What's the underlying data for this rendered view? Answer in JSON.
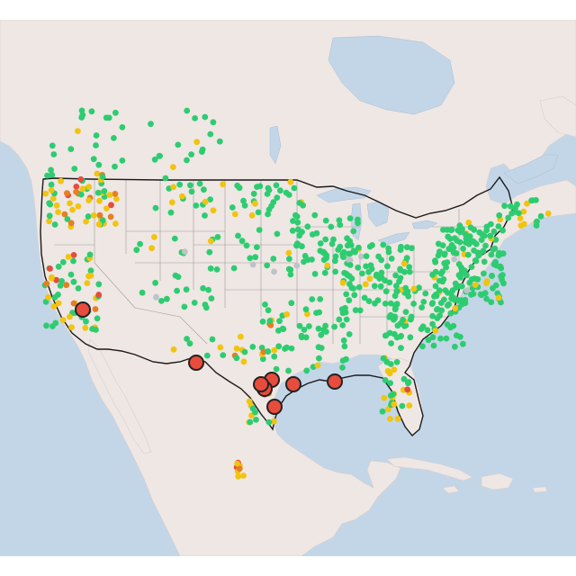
{
  "map": {
    "colors": {
      "ocean": "#c3d6e7",
      "land": "#efe7e4",
      "land_alt": "#ebe2df",
      "lake": "#c3d6e7",
      "boundary": "#9a9a9a",
      "country_outline": "#1a1a1a",
      "good": "#2ecc71",
      "moderate": "#f1c40f",
      "usg": "#e67e22",
      "unhealthy": "#e74c3c",
      "no_data": "#bdc3c7",
      "highlight_stroke": "#222222"
    },
    "legend_levels": [
      "good",
      "moderate",
      "usg",
      "unhealthy",
      "no_data"
    ],
    "highlighted_station_count": 8
  }
}
